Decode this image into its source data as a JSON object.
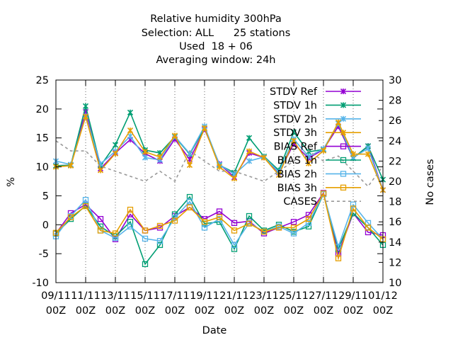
{
  "chart_data": {
    "type": "line",
    "title": [
      "Relative humidity 300hPa",
      "Selection: ALL      25 stations",
      "Used  18 + 06",
      "Averaging window: 24h"
    ],
    "xlabel": "Date",
    "ylabel": "%",
    "y2label": "No cases",
    "ylim": [
      -10,
      25
    ],
    "y2lim": [
      10,
      30
    ],
    "yticks": [
      "-10",
      "-5",
      "0",
      "5",
      "10",
      "15",
      "20",
      "25"
    ],
    "y2ticks": [
      "10",
      "12",
      "14",
      "16",
      "18",
      "20",
      "22",
      "24",
      "26",
      "28",
      "30"
    ],
    "xticks": [
      {
        "top": "09/11",
        "bottom": "00Z"
      },
      {
        "top": "11/11",
        "bottom": "00Z"
      },
      {
        "top": "13/11",
        "bottom": "00Z"
      },
      {
        "top": "15/11",
        "bottom": "00Z"
      },
      {
        "top": "17/11",
        "bottom": "00Z"
      },
      {
        "top": "19/11",
        "bottom": "00Z"
      },
      {
        "top": "21/11",
        "bottom": "00Z"
      },
      {
        "top": "23/11",
        "bottom": "00Z"
      },
      {
        "top": "25/11",
        "bottom": "00Z"
      },
      {
        "top": "27/11",
        "bottom": "00Z"
      },
      {
        "top": "29/11",
        "bottom": "00Z"
      },
      {
        "top": "01/12",
        "bottom": "00Z"
      }
    ],
    "x": [
      "09/11 00Z",
      "10/11 00Z",
      "11/11 00Z",
      "12/11 00Z",
      "13/11 00Z",
      "14/11 00Z",
      "15/11 00Z",
      "16/11 00Z",
      "17/11 00Z",
      "18/11 00Z",
      "19/11 00Z",
      "20/11 00Z",
      "21/11 00Z",
      "22/11 00Z",
      "23/11 00Z",
      "24/11 00Z",
      "25/11 00Z",
      "26/11 00Z",
      "27/11 00Z",
      "28/11 00Z",
      "29/11 00Z",
      "30/11 00Z",
      "01/12 00Z"
    ],
    "legend_position": "top-right",
    "series": [
      {
        "name": "STDV Ref",
        "color": "#9400d3",
        "marker": "x-star",
        "axis": "y1",
        "dash": false,
        "values": [
          10.2,
          10.3,
          19.5,
          9.7,
          12.4,
          14.7,
          12.3,
          11.0,
          14.8,
          11.3,
          16.5,
          10.5,
          8.2,
          12.4,
          11.6,
          9.0,
          14.0,
          11.5,
          13.0,
          17.0,
          11.5,
          13.6,
          6.0
        ]
      },
      {
        "name": "STDV 1h",
        "color": "#009e73",
        "marker": "x-star",
        "axis": "y1",
        "dash": false,
        "values": [
          10.2,
          10.3,
          20.5,
          10.2,
          13.8,
          19.4,
          12.9,
          12.4,
          15.2,
          12.2,
          16.7,
          10.3,
          9.0,
          15.0,
          11.8,
          9.4,
          16.0,
          12.6,
          13.0,
          17.5,
          11.5,
          13.6,
          7.8
        ]
      },
      {
        "name": "STDV 2h",
        "color": "#56b4e9",
        "marker": "x-star",
        "axis": "y1",
        "dash": false,
        "values": [
          11.0,
          10.4,
          18.8,
          10.5,
          12.7,
          15.3,
          11.6,
          11.2,
          15.3,
          12.3,
          17.0,
          10.4,
          8.7,
          11.0,
          11.7,
          9.1,
          14.8,
          11.8,
          13.1,
          17.5,
          11.6,
          13.2,
          6.0
        ]
      },
      {
        "name": "STDV 3h",
        "color": "#e69f00",
        "marker": "x-star",
        "axis": "y1",
        "dash": false,
        "values": [
          10.0,
          10.2,
          18.7,
          9.4,
          12.3,
          16.3,
          12.6,
          11.7,
          15.4,
          10.3,
          16.7,
          10.0,
          8.0,
          12.7,
          11.6,
          8.6,
          14.5,
          10.6,
          12.8,
          17.7,
          12.2,
          12.2,
          6.0
        ]
      },
      {
        "name": "BIAS Ref",
        "color": "#9400d3",
        "marker": "square",
        "axis": "y1",
        "dash": false,
        "values": [
          -1.5,
          2.0,
          3.5,
          1.0,
          -2.5,
          1.8,
          -1.0,
          -0.5,
          1.5,
          3.0,
          1.0,
          2.3,
          0.3,
          0.6,
          -1.5,
          -0.5,
          0.5,
          1.7,
          5.5,
          -5.0,
          2.0,
          -1.3,
          -1.8
        ]
      },
      {
        "name": "BIAS 1h",
        "color": "#009e73",
        "marker": "square",
        "axis": "y1",
        "dash": false,
        "values": [
          -1.5,
          1.0,
          3.3,
          -0.3,
          -2.0,
          0.5,
          -6.8,
          -3.5,
          1.8,
          4.8,
          0.2,
          0.5,
          -4.2,
          1.5,
          -1.0,
          0.0,
          -1.2,
          -0.3,
          5.3,
          -4.2,
          2.0,
          -0.5,
          -3.5
        ]
      },
      {
        "name": "BIAS 2h",
        "color": "#56b4e9",
        "marker": "square",
        "axis": "y1",
        "dash": false,
        "values": [
          -2.0,
          1.5,
          4.3,
          -1.0,
          -2.3,
          -0.3,
          -2.4,
          -2.8,
          1.2,
          4.0,
          -0.5,
          1.0,
          -3.5,
          0.3,
          -1.2,
          -0.3,
          -1.5,
          0.3,
          5.3,
          -3.8,
          3.5,
          0.3,
          -2.5
        ]
      },
      {
        "name": "BIAS 3h",
        "color": "#e69f00",
        "marker": "square",
        "axis": "y1",
        "dash": false,
        "values": [
          -1.4,
          1.3,
          3.2,
          -1.0,
          -1.5,
          2.6,
          -1.0,
          -0.2,
          0.7,
          3.0,
          0.5,
          1.3,
          -1.0,
          0.2,
          -1.2,
          -0.5,
          -0.5,
          1.0,
          5.4,
          -5.8,
          2.8,
          -0.5,
          -2.5
        ]
      },
      {
        "name": "CASES",
        "color": "#999999",
        "marker": "none",
        "axis": "y2",
        "dash": true,
        "values": [
          24.0,
          23.0,
          23.0,
          21.5,
          21.0,
          20.5,
          20.0,
          21.0,
          20.0,
          23.0,
          22.0,
          21.0,
          21.0,
          20.5,
          20.0,
          21.0,
          22.0,
          23.0,
          22.0,
          22.5,
          21.0,
          19.5,
          21.5
        ]
      }
    ]
  }
}
